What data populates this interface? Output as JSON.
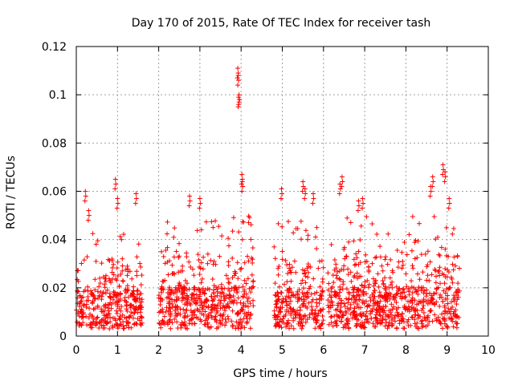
{
  "chart_data": {
    "type": "scatter",
    "title": "Day 170 of 2015, Rate Of TEC Index for receiver tash",
    "xlabel": "GPS time / hours",
    "ylabel": "ROTI / TECUs",
    "xlim": [
      0,
      10
    ],
    "ylim": [
      0,
      0.12
    ],
    "x_ticks": [
      0,
      1,
      2,
      3,
      4,
      5,
      6,
      7,
      8,
      9,
      10
    ],
    "x_tick_labels": [
      "0",
      "1",
      "2",
      "3",
      "4",
      "5",
      "6",
      "7",
      "8",
      "9",
      "10"
    ],
    "y_ticks": [
      0,
      0.02,
      0.04,
      0.06,
      0.08,
      0.1,
      0.12
    ],
    "y_tick_labels": [
      "0",
      "0.02",
      "0.04",
      "0.06",
      "0.08",
      "0.1",
      "0.12"
    ],
    "grid": true,
    "marker": "plus",
    "color": "#ff0000",
    "series": [
      {
        "name": "ROTI",
        "segments": [
          {
            "x_start": 0.0,
            "x_end": 1.6,
            "base_max": 0.028,
            "spread_max": 0.045,
            "peaks": [
              [
                0.22,
                0.06
              ],
              [
                0.95,
                0.065
              ],
              [
                1.45,
                0.059
              ],
              [
                1.0,
                0.057
              ],
              [
                0.3,
                0.052
              ]
            ]
          },
          {
            "x_start": 2.0,
            "x_end": 4.3,
            "base_max": 0.03,
            "spread_max": 0.05,
            "peaks": [
              [
                3.92,
                0.111
              ],
              [
                3.93,
                0.108
              ],
              [
                3.95,
                0.1
              ],
              [
                3.94,
                0.099
              ],
              [
                4.02,
                0.067
              ],
              [
                4.03,
                0.064
              ],
              [
                2.75,
                0.058
              ],
              [
                3.0,
                0.057
              ]
            ]
          },
          {
            "x_start": 4.8,
            "x_end": 6.0,
            "base_max": 0.028,
            "spread_max": 0.048,
            "peaks": [
              [
                4.98,
                0.061
              ],
              [
                5.5,
                0.064
              ],
              [
                5.55,
                0.061
              ],
              [
                5.75,
                0.059
              ]
            ]
          },
          {
            "x_start": 6.1,
            "x_end": 9.3,
            "base_max": 0.03,
            "spread_max": 0.05,
            "peaks": [
              [
                6.45,
                0.066
              ],
              [
                6.4,
                0.063
              ],
              [
                6.95,
                0.057
              ],
              [
                6.85,
                0.056
              ],
              [
                8.65,
                0.066
              ],
              [
                8.9,
                0.071
              ],
              [
                8.95,
                0.068
              ],
              [
                9.05,
                0.057
              ],
              [
                8.6,
                0.062
              ]
            ]
          }
        ]
      }
    ]
  }
}
